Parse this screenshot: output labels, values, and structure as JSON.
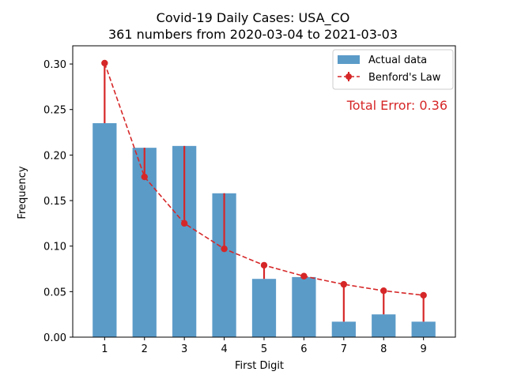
{
  "chart_data": {
    "type": "bar",
    "title": "Covid-19 Daily Cases: USA_CO",
    "subtitle": "361 numbers from 2020-03-04 to 2021-03-03",
    "xlabel": "First Digit",
    "ylabel": "Frequency",
    "categories": [
      "1",
      "2",
      "3",
      "4",
      "5",
      "6",
      "7",
      "8",
      "9"
    ],
    "x": [
      1,
      2,
      3,
      4,
      5,
      6,
      7,
      8,
      9
    ],
    "ylim": [
      0,
      0.32
    ],
    "yticks": [
      0.0,
      0.05,
      0.1,
      0.15,
      0.2,
      0.25,
      0.3
    ],
    "ytick_labels": [
      "0.00",
      "0.05",
      "0.10",
      "0.15",
      "0.20",
      "0.25",
      "0.30"
    ],
    "grid": false,
    "legend_position": "top-right",
    "series": [
      {
        "name": "Actual data",
        "kind": "bar",
        "color": "#5b9bc8",
        "values": [
          0.235,
          0.208,
          0.21,
          0.158,
          0.064,
          0.066,
          0.017,
          0.025,
          0.017
        ]
      },
      {
        "name": "Benford's Law",
        "kind": "line-dashed-markers-errorbars",
        "color": "#d62728",
        "values": [
          0.301,
          0.176,
          0.125,
          0.097,
          0.079,
          0.067,
          0.058,
          0.051,
          0.046
        ]
      }
    ],
    "annotation": {
      "text": "Total Error: 0.36",
      "color": "#d62728"
    }
  }
}
